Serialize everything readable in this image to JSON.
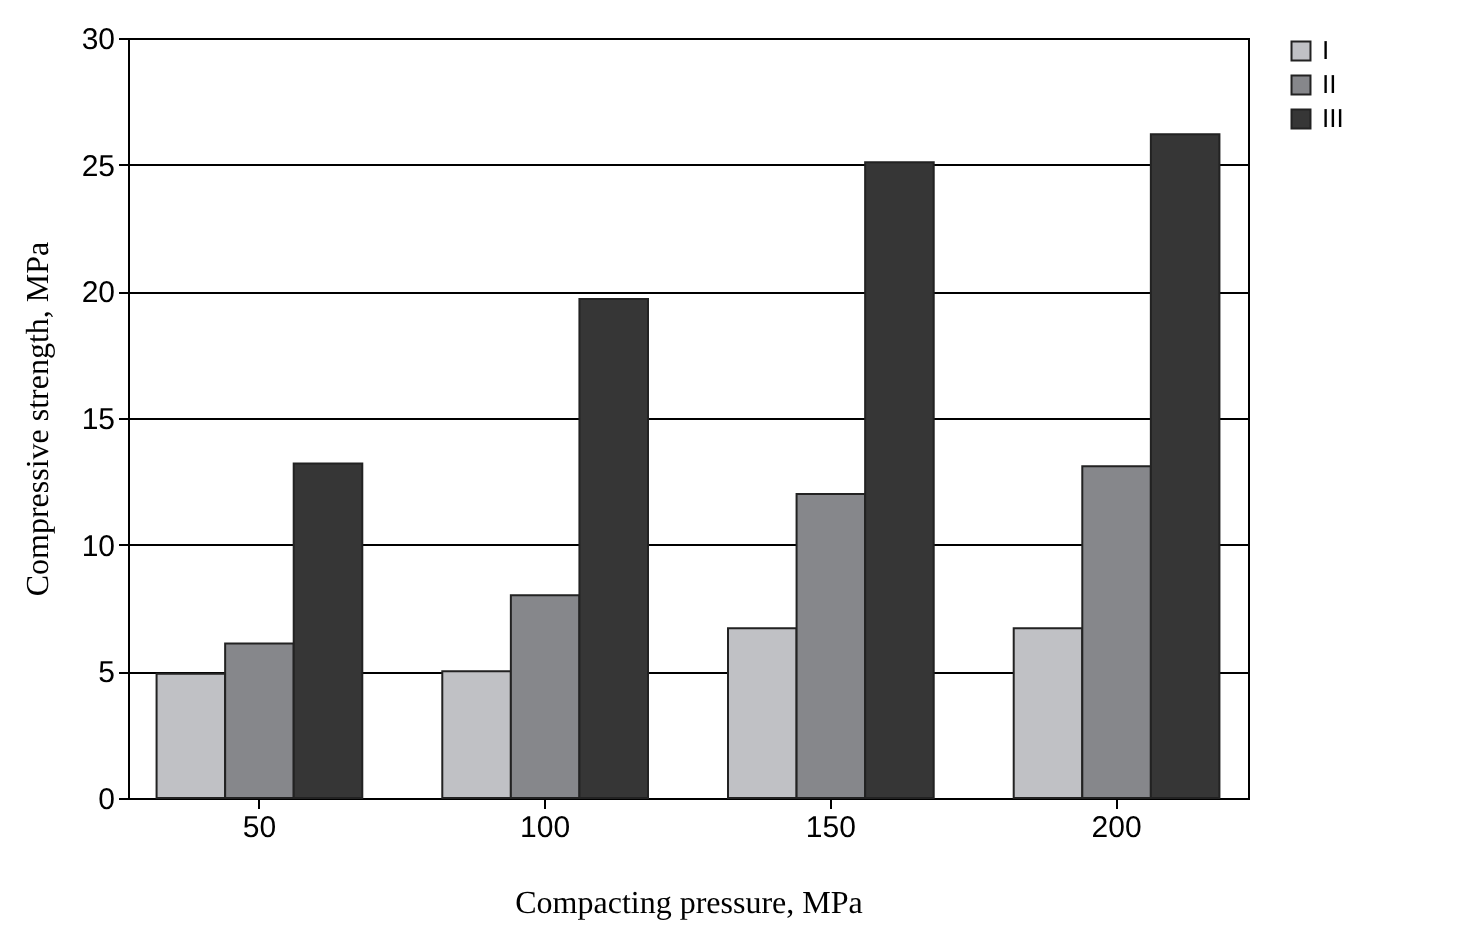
{
  "chart_data": {
    "type": "bar",
    "xlabel": "Compacting pressure, MPa",
    "ylabel": "Compressive strength, MPa",
    "categories": [
      "50",
      "100",
      "150",
      "200"
    ],
    "series": [
      {
        "name": "I",
        "color": "#c0c1c5",
        "values": [
          4.9,
          5.0,
          6.7,
          6.7
        ]
      },
      {
        "name": "II",
        "color": "#86878b",
        "values": [
          6.1,
          8.0,
          12.0,
          13.1
        ]
      },
      {
        "name": "III",
        "color": "#363636",
        "values": [
          13.2,
          19.7,
          25.1,
          26.2
        ]
      }
    ],
    "ylim": [
      0,
      30
    ],
    "yticks": [
      0,
      5,
      10,
      15,
      20,
      25,
      30
    ],
    "grid": "y",
    "legend": "right"
  }
}
